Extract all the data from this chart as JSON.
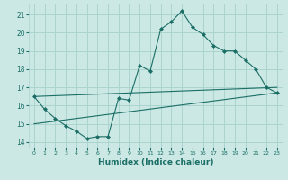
{
  "title": "",
  "xlabel": "Humidex (Indice chaleur)",
  "ylabel": "",
  "background_color": "#cce8e4",
  "grid_color": "#aad4cf",
  "line_color": "#1a6e66",
  "x_ticks": [
    0,
    1,
    2,
    3,
    4,
    5,
    6,
    7,
    8,
    9,
    10,
    11,
    12,
    13,
    14,
    15,
    16,
    17,
    18,
    19,
    20,
    21,
    22,
    23
  ],
  "y_ticks": [
    14,
    15,
    16,
    17,
    18,
    19,
    20,
    21
  ],
  "ylim": [
    13.7,
    21.6
  ],
  "xlim": [
    -0.5,
    23.5
  ],
  "series1_x": [
    0,
    1,
    2,
    3,
    4,
    5,
    6,
    7,
    8,
    9,
    10,
    11,
    12,
    13,
    14,
    15,
    16,
    17,
    18,
    19,
    20,
    21,
    22,
    23
  ],
  "series1_y": [
    16.5,
    15.8,
    15.3,
    14.9,
    14.6,
    14.2,
    14.3,
    14.3,
    16.4,
    16.3,
    18.2,
    17.9,
    20.2,
    20.6,
    21.2,
    20.3,
    19.9,
    19.3,
    19.0,
    19.0,
    18.5,
    18.0,
    17.0,
    16.7
  ],
  "series2_x": [
    0,
    23
  ],
  "series2_y": [
    16.5,
    17.0
  ],
  "series3_x": [
    0,
    23
  ],
  "series3_y": [
    15.0,
    16.7
  ]
}
